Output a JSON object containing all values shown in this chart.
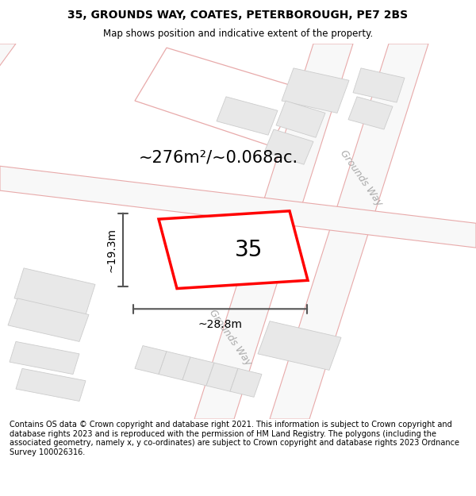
{
  "title_line1": "35, GROUNDS WAY, COATES, PETERBOROUGH, PE7 2BS",
  "title_line2": "Map shows position and indicative extent of the property.",
  "footer": "Contains OS data © Crown copyright and database right 2021. This information is subject to Crown copyright and database rights 2023 and is reproduced with the permission of HM Land Registry. The polygons (including the associated geometry, namely x, y co-ordinates) are subject to Crown copyright and database rights 2023 Ordnance Survey 100026316.",
  "area_label": "~276m²/~0.068ac.",
  "width_label": "~28.8m",
  "height_label": "~19.3m",
  "number_label": "35",
  "background_color": "#ffffff",
  "plot_outline_color": "#ff0000",
  "road_edge_color": "#e8aaaa",
  "building_fill": "#e8e8e8",
  "building_edge": "#cccccc",
  "road_fill": "#ffffff",
  "dim_line_color": "#555555",
  "street_label_color": "#aaaaaa",
  "title_fontsize": 10,
  "subtitle_fontsize": 8.5,
  "footer_fontsize": 7,
  "area_fontsize": 15,
  "number_fontsize": 20,
  "dim_fontsize": 10,
  "street_fontsize": 9
}
